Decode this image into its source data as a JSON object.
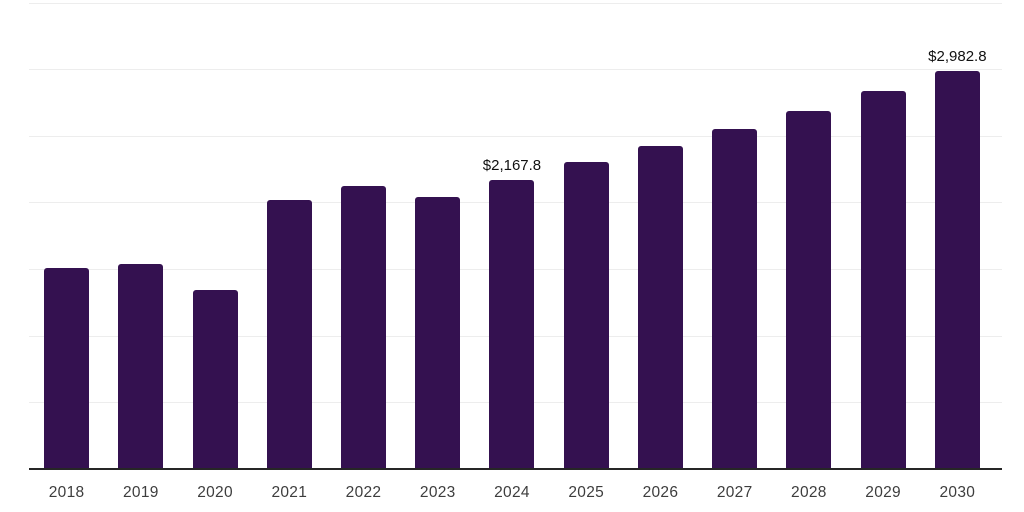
{
  "chart_data": {
    "type": "bar",
    "title": "",
    "xlabel": "",
    "ylabel": "",
    "categories": [
      "2018",
      "2019",
      "2020",
      "2021",
      "2022",
      "2023",
      "2024",
      "2025",
      "2026",
      "2027",
      "2028",
      "2029",
      "2030"
    ],
    "values": [
      1510,
      1540,
      1345,
      2020,
      2125,
      2040,
      2167.8,
      2305,
      2425,
      2550,
      2685,
      2835,
      2982.8
    ],
    "data_labels": [
      {
        "category": "2024",
        "text": "$2,167.8"
      },
      {
        "category": "2030",
        "text": "$2,982.8"
      }
    ],
    "ylim": [
      0,
      3500
    ],
    "gridline_step": 500,
    "grid": "horizontal-only",
    "legend": "none",
    "colors": {
      "bar": "#341150",
      "gridline": "#ededed",
      "axis_line": "#262626",
      "tick_label": "#3d3d3d",
      "data_label": "#111111",
      "background": "#ffffff"
    }
  }
}
